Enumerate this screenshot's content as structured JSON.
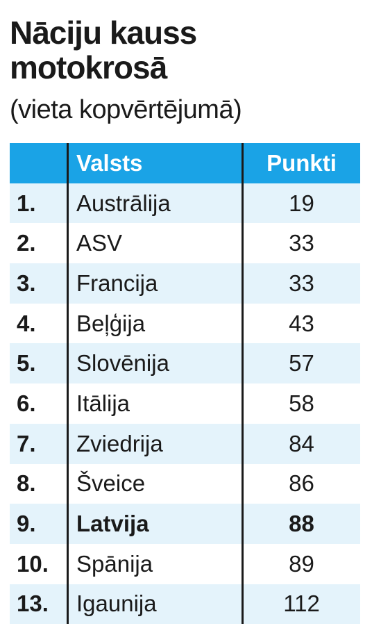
{
  "title": "Nāciju kauss motokrosā",
  "subtitle": "(vieta kopvērtējumā)",
  "colors": {
    "header_bg": "#1aa3e6",
    "stripe_bg": "#e4f3fb",
    "text": "#1a1a1a"
  },
  "table": {
    "headers": {
      "rank": "",
      "country": "Valsts",
      "points": "Punkti"
    },
    "rows": [
      {
        "rank": "1.",
        "country": "Austrālija",
        "points": "19"
      },
      {
        "rank": "2.",
        "country": "ASV",
        "points": "33"
      },
      {
        "rank": "3.",
        "country": "Francija",
        "points": "33"
      },
      {
        "rank": "4.",
        "country": "Beļģija",
        "points": "43"
      },
      {
        "rank": "5.",
        "country": "Slovēnija",
        "points": "57"
      },
      {
        "rank": "6.",
        "country": "Itālija",
        "points": "58"
      },
      {
        "rank": "7.",
        "country": "Zviedrija",
        "points": "84"
      },
      {
        "rank": "8.",
        "country": "Šveice",
        "points": "86"
      },
      {
        "rank": "9.",
        "country": "Latvija",
        "points": "88"
      },
      {
        "rank": "10.",
        "country": "Spānija",
        "points": "89"
      },
      {
        "rank": "13.",
        "country": "Igaunija",
        "points": "112"
      }
    ]
  }
}
